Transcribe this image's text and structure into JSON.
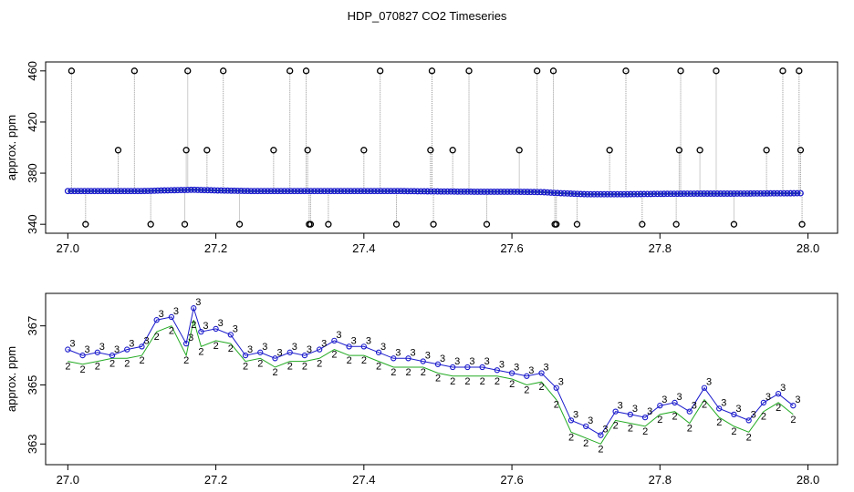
{
  "title": "HDP_070827  CO2 Timeseries",
  "colors": {
    "frame": "#000000",
    "spike_line": "#999999",
    "outlier_marker": "#000000",
    "series_3": "#1a1acc",
    "series_2": "#22aa22",
    "highlight": "#00cccc"
  },
  "chart_data": [
    {
      "type": "scatter",
      "panel": "top",
      "title": "",
      "xlabel": "",
      "ylabel": "approx. ppm",
      "xlim": [
        26.97,
        28.04
      ],
      "ylim": [
        333,
        467
      ],
      "xticks": [
        27.0,
        27.2,
        27.4,
        27.6,
        27.8,
        28.0
      ],
      "xtick_labels": [
        "27.0",
        "27.2",
        "27.4",
        "27.6",
        "27.8",
        "28.0"
      ],
      "yticks": [
        340,
        380,
        420,
        460
      ],
      "ytick_labels": [
        "340",
        "380",
        "420",
        "460"
      ],
      "baseline": {
        "x": [
          27.0,
          27.05,
          27.1,
          27.13,
          27.17,
          27.2,
          27.25,
          27.3,
          27.35,
          27.4,
          27.45,
          27.5,
          27.55,
          27.6,
          27.64,
          27.66,
          27.7,
          27.75,
          27.8,
          27.85,
          27.9,
          27.95,
          27.99
        ],
        "y": [
          366,
          366,
          366,
          366.5,
          367,
          366.5,
          366,
          366,
          366,
          366,
          366,
          365.7,
          365.5,
          365.5,
          365.2,
          364.5,
          363.5,
          363.5,
          363.8,
          364,
          364,
          364.2,
          364.3
        ]
      },
      "outliers": {
        "x": [
          27.005,
          27.024,
          27.068,
          27.09,
          27.112,
          27.158,
          27.16,
          27.162,
          27.188,
          27.21,
          27.232,
          27.278,
          27.3,
          27.322,
          27.324,
          27.326,
          27.328,
          27.352,
          27.4,
          27.422,
          27.444,
          27.49,
          27.492,
          27.494,
          27.52,
          27.542,
          27.566,
          27.61,
          27.634,
          27.656,
          27.658,
          27.66,
          27.688,
          27.732,
          27.754,
          27.776,
          27.822,
          27.826,
          27.828,
          27.854,
          27.876,
          27.9,
          27.944,
          27.966,
          27.988,
          27.99,
          27.992
        ],
        "y": [
          460,
          340,
          398,
          460,
          340,
          340,
          398,
          460,
          398,
          460,
          340,
          398,
          460,
          460,
          398,
          340,
          340,
          340,
          398,
          460,
          340,
          398,
          460,
          340,
          398,
          460,
          340,
          398,
          460,
          460,
          340,
          340,
          340,
          398,
          460,
          340,
          340,
          398,
          460,
          398,
          460,
          340,
          398,
          460,
          460,
          398,
          340
        ]
      }
    },
    {
      "type": "scatter",
      "panel": "bottom",
      "title": "",
      "xlabel": "",
      "ylabel": "approx. ppm",
      "xlim": [
        26.97,
        28.04
      ],
      "ylim": [
        362.3,
        368.1
      ],
      "xticks": [
        27.0,
        27.2,
        27.4,
        27.6,
        27.8,
        28.0
      ],
      "xtick_labels": [
        "27.0",
        "27.2",
        "27.4",
        "27.6",
        "27.8",
        "28.0"
      ],
      "yticks": [
        363,
        365,
        367
      ],
      "ytick_labels": [
        "363",
        "365",
        "367"
      ],
      "series": [
        {
          "name": "3",
          "x": [
            27.0,
            27.02,
            27.04,
            27.06,
            27.08,
            27.1,
            27.12,
            27.14,
            27.16,
            27.17,
            27.18,
            27.2,
            27.22,
            27.24,
            27.26,
            27.28,
            27.3,
            27.32,
            27.34,
            27.36,
            27.38,
            27.4,
            27.42,
            27.44,
            27.46,
            27.48,
            27.5,
            27.52,
            27.54,
            27.56,
            27.58,
            27.6,
            27.62,
            27.64,
            27.66,
            27.68,
            27.7,
            27.72,
            27.74,
            27.76,
            27.78,
            27.8,
            27.82,
            27.84,
            27.86,
            27.88,
            27.9,
            27.92,
            27.94,
            27.96,
            27.98
          ],
          "y": [
            366.2,
            366.0,
            366.1,
            366.0,
            366.2,
            366.3,
            367.2,
            367.3,
            366.4,
            367.6,
            366.8,
            366.9,
            366.7,
            366.0,
            366.1,
            365.9,
            366.1,
            366.0,
            366.2,
            366.5,
            366.3,
            366.3,
            366.1,
            365.9,
            365.9,
            365.8,
            365.7,
            365.6,
            365.6,
            365.6,
            365.5,
            365.4,
            365.3,
            365.4,
            364.9,
            363.8,
            363.6,
            363.3,
            364.1,
            364.0,
            363.9,
            364.3,
            364.4,
            364.1,
            364.9,
            364.2,
            364.0,
            363.8,
            364.4,
            364.7,
            364.3
          ]
        },
        {
          "name": "2",
          "x": [
            27.0,
            27.02,
            27.04,
            27.06,
            27.08,
            27.1,
            27.12,
            27.14,
            27.16,
            27.17,
            27.18,
            27.2,
            27.22,
            27.24,
            27.26,
            27.28,
            27.3,
            27.32,
            27.34,
            27.36,
            27.38,
            27.4,
            27.42,
            27.44,
            27.46,
            27.48,
            27.5,
            27.52,
            27.54,
            27.56,
            27.58,
            27.6,
            27.62,
            27.64,
            27.66,
            27.68,
            27.7,
            27.72,
            27.74,
            27.76,
            27.78,
            27.8,
            27.82,
            27.84,
            27.86,
            27.88,
            27.9,
            27.92,
            27.94,
            27.96,
            27.98
          ],
          "y": [
            365.8,
            365.7,
            365.8,
            365.9,
            365.9,
            366.0,
            366.8,
            367.0,
            366.0,
            367.2,
            366.3,
            366.5,
            366.4,
            365.8,
            365.9,
            365.6,
            365.8,
            365.8,
            365.9,
            366.2,
            366.0,
            366.0,
            365.8,
            365.6,
            365.6,
            365.6,
            365.4,
            365.3,
            365.3,
            365.3,
            365.3,
            365.2,
            365.0,
            365.1,
            364.5,
            363.4,
            363.2,
            363.0,
            363.8,
            363.7,
            363.6,
            364.0,
            364.1,
            363.7,
            364.5,
            363.9,
            363.6,
            363.4,
            364.1,
            364.4,
            364.0
          ]
        }
      ]
    }
  ]
}
